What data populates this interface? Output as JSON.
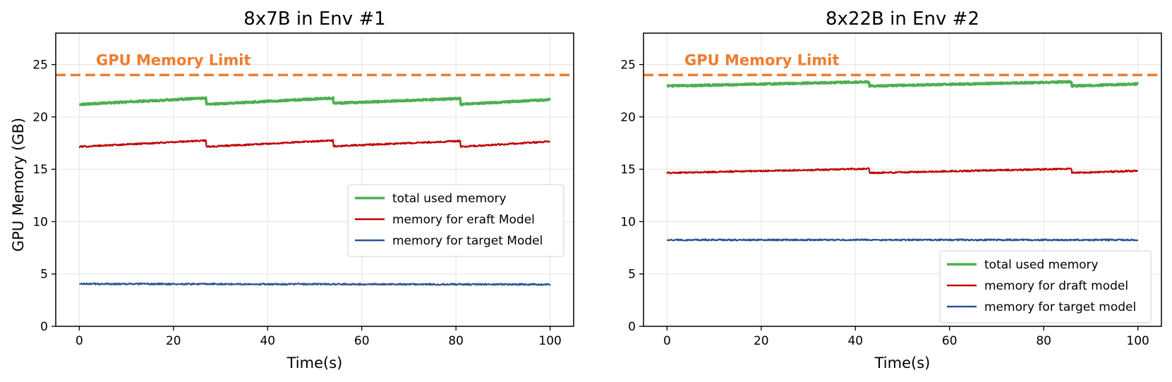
{
  "figure": {
    "ylabel": "GPU Memory (GB)"
  },
  "chart_data": [
    {
      "type": "line",
      "title": "8x7B in Env #1",
      "xlabel": "Time(s)",
      "ylabel": "GPU Memory (GB)",
      "xlim": [
        -5,
        105
      ],
      "ylim": [
        0,
        28
      ],
      "xticks": [
        0,
        20,
        40,
        60,
        80,
        100
      ],
      "yticks": [
        0,
        5,
        10,
        15,
        20,
        25
      ],
      "grid": true,
      "legend_position": "center-right",
      "limit_line": {
        "value": 24,
        "label": "GPU Memory Limit",
        "color": "#ED7D31"
      },
      "series": [
        {
          "name": "total used memory",
          "color": "#4CAF50",
          "x": [
            0,
            26.9,
            27,
            53.9,
            54,
            80.9,
            81,
            100
          ],
          "values": [
            21.2,
            21.8,
            21.2,
            21.8,
            21.3,
            21.75,
            21.2,
            21.65
          ]
        },
        {
          "name": "memory for eraft Model",
          "color": "#C00000",
          "x": [
            0,
            26.9,
            27,
            53.9,
            54,
            80.9,
            81,
            100
          ],
          "values": [
            17.15,
            17.75,
            17.15,
            17.75,
            17.2,
            17.7,
            17.15,
            17.65
          ]
        },
        {
          "name": "memory for target Model",
          "color": "#2F5597",
          "x": [
            0,
            100
          ],
          "values": [
            4.05,
            4.0
          ]
        }
      ]
    },
    {
      "type": "line",
      "title": "8x22B in Env #2",
      "xlabel": "Time(s)",
      "ylabel": "",
      "xlim": [
        -5,
        105
      ],
      "ylim": [
        0,
        28
      ],
      "xticks": [
        0,
        20,
        40,
        60,
        80,
        100
      ],
      "yticks": [
        0,
        5,
        10,
        15,
        20,
        25
      ],
      "grid": true,
      "legend_position": "lower-right",
      "limit_line": {
        "value": 24,
        "label": "GPU Memory Limit",
        "color": "#ED7D31"
      },
      "series": [
        {
          "name": "total used memory",
          "color": "#4CAF50",
          "x": [
            0,
            42.9,
            43,
            85.9,
            86,
            100
          ],
          "values": [
            22.95,
            23.35,
            22.95,
            23.35,
            22.95,
            23.15
          ]
        },
        {
          "name": "memory for draft model",
          "color": "#C00000",
          "x": [
            0,
            42.9,
            43,
            85.9,
            86,
            100
          ],
          "values": [
            14.65,
            15.05,
            14.65,
            15.05,
            14.65,
            14.85
          ]
        },
        {
          "name": "memory for target model",
          "color": "#2F5597",
          "x": [
            0,
            100
          ],
          "values": [
            8.25,
            8.25
          ]
        }
      ]
    }
  ]
}
